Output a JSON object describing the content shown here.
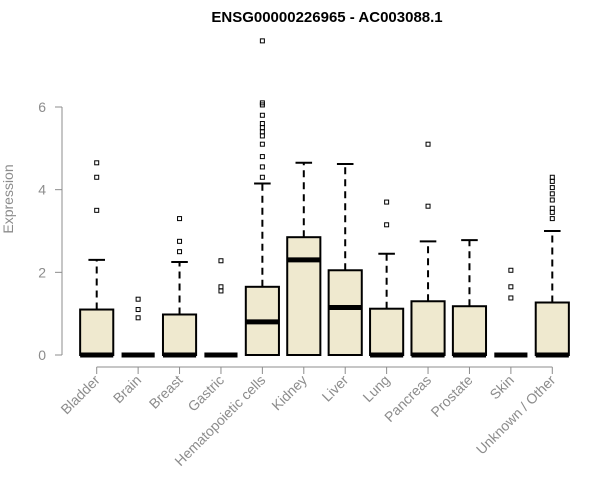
{
  "chart_data": {
    "type": "boxplot",
    "title": "ENSG00000226965 - AC003088.1",
    "ylabel": "Expression",
    "xlabel": "",
    "ylim": [
      0,
      7.6
    ],
    "yticks": [
      0,
      2,
      4,
      6
    ],
    "grid": false,
    "box_color": "#efe9cf",
    "line_color": "#000000",
    "axis_color": "#8c8c8c",
    "categories": [
      "Bladder",
      "Brain",
      "Breast",
      "Gastric",
      "Hematopoietic cells",
      "Kidney",
      "Liver",
      "Lung",
      "Pancreas",
      "Prostate",
      "Skin",
      "Unknown / Other"
    ],
    "boxes": [
      {
        "label": "Bladder",
        "q1": 0,
        "median": 0,
        "q3": 1.1,
        "whisker_low": 0,
        "whisker_high": 2.3,
        "outliers": [
          3.5,
          4.3,
          4.65
        ]
      },
      {
        "label": "Brain",
        "q1": 0,
        "median": 0,
        "q3": 0,
        "whisker_low": 0,
        "whisker_high": 0,
        "outliers": [
          0.9,
          1.1,
          1.35
        ]
      },
      {
        "label": "Breast",
        "q1": 0,
        "median": 0,
        "q3": 0.98,
        "whisker_low": 0,
        "whisker_high": 2.25,
        "outliers": [
          2.5,
          2.75,
          3.3
        ]
      },
      {
        "label": "Gastric",
        "q1": 0,
        "median": 0,
        "q3": 0,
        "whisker_low": 0,
        "whisker_high": 0,
        "outliers": [
          1.55,
          1.65,
          2.28
        ]
      },
      {
        "label": "Hematopoietic cells",
        "q1": 0,
        "median": 0.8,
        "q3": 1.65,
        "whisker_low": 0,
        "whisker_high": 4.15,
        "outliers": [
          4.3,
          4.55,
          4.8,
          5.1,
          5.3,
          5.4,
          5.5,
          5.6,
          5.8,
          6.05,
          6.1,
          7.6
        ]
      },
      {
        "label": "Kidney",
        "q1": 0,
        "median": 2.3,
        "q3": 2.85,
        "whisker_low": 0,
        "whisker_high": 4.65,
        "outliers": []
      },
      {
        "label": "Liver",
        "q1": 0,
        "median": 1.15,
        "q3": 2.05,
        "whisker_low": 0,
        "whisker_high": 4.62,
        "outliers": []
      },
      {
        "label": "Lung",
        "q1": 0,
        "median": 0,
        "q3": 1.12,
        "whisker_low": 0,
        "whisker_high": 2.45,
        "outliers": [
          3.15,
          3.7
        ]
      },
      {
        "label": "Pancreas",
        "q1": 0,
        "median": 0,
        "q3": 1.3,
        "whisker_low": 0,
        "whisker_high": 2.75,
        "outliers": [
          3.6,
          5.1
        ]
      },
      {
        "label": "Prostate",
        "q1": 0,
        "median": 0,
        "q3": 1.18,
        "whisker_low": 0,
        "whisker_high": 2.78,
        "outliers": []
      },
      {
        "label": "Skin",
        "q1": 0,
        "median": 0,
        "q3": 0,
        "whisker_low": 0,
        "whisker_high": 0,
        "outliers": [
          1.38,
          1.65,
          2.05
        ]
      },
      {
        "label": "Unknown / Other",
        "q1": 0,
        "median": 0,
        "q3": 1.27,
        "whisker_low": 0,
        "whisker_high": 3.0,
        "outliers": [
          3.3,
          3.45,
          3.55,
          3.75,
          3.9,
          4.05,
          4.2,
          4.3
        ]
      }
    ]
  }
}
